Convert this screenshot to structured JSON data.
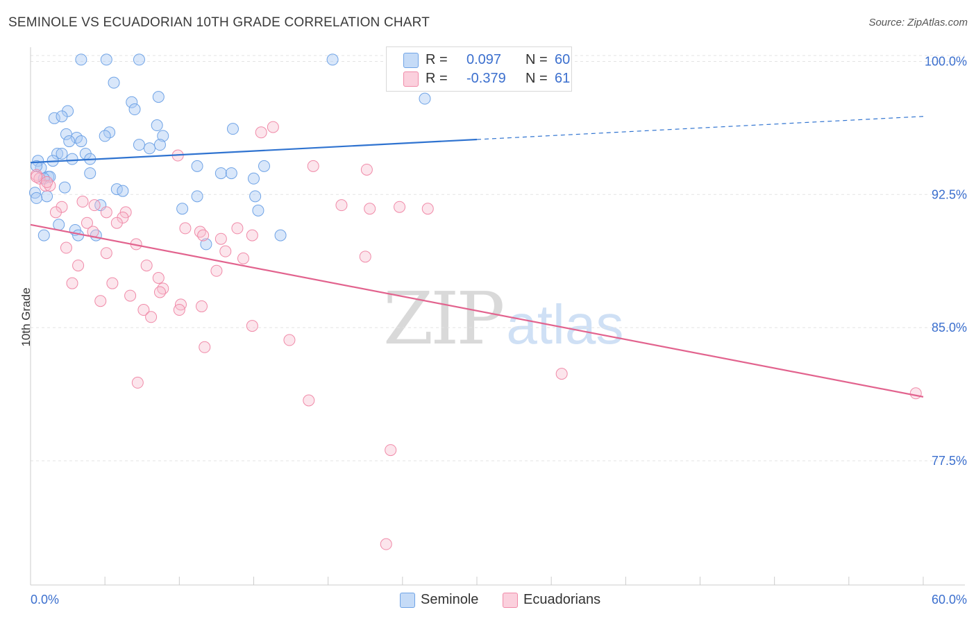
{
  "title": "SEMINOLE VS ECUADORIAN 10TH GRADE CORRELATION CHART",
  "source": "Source: ZipAtlas.com",
  "watermark": {
    "zip": "ZIP",
    "atlas": "atlas"
  },
  "legend_top": [
    {
      "series": "Seminole",
      "r_label": "R =",
      "r_value": "0.097",
      "n_label": "N =",
      "n_value": "60"
    },
    {
      "series": "Ecuadorians",
      "r_label": "R =",
      "r_value": "-0.379",
      "n_label": "N =",
      "n_value": "61"
    }
  ],
  "legend_bottom": [
    "Seminole",
    "Ecuadorians"
  ],
  "chart_data": {
    "type": "scatter",
    "title": "SEMINOLE VS ECUADORIAN 10TH GRADE CORRELATION CHART",
    "xlabel": "",
    "ylabel": "10th Grade",
    "xlim": [
      0,
      60
    ],
    "ylim": [
      70.5,
      100.8
    ],
    "x_tick_labels": [
      "0.0%",
      "60.0%"
    ],
    "y_ticks": [
      77.5,
      85.0,
      92.5,
      100.0
    ],
    "y_tick_labels": [
      "77.5%",
      "85.0%",
      "92.5%",
      "100.0%"
    ],
    "grid": true,
    "legend_position": "top-center",
    "colors": {
      "Seminole": "#6fa3e6",
      "Ecuadorians": "#f08aa8",
      "seminole_line": "#2f73d0",
      "ecuadorian_line": "#e2638e",
      "tick_text": "#3b6fce"
    },
    "series": [
      {
        "name": "Seminole",
        "points": [
          [
            3.4,
            100.1
          ],
          [
            5.1,
            100.1
          ],
          [
            7.3,
            100.1
          ],
          [
            20.3,
            100.1
          ],
          [
            5.6,
            98.8
          ],
          [
            8.6,
            98.0
          ],
          [
            26.5,
            97.9
          ],
          [
            6.8,
            97.7
          ],
          [
            7.0,
            97.3
          ],
          [
            2.5,
            97.2
          ],
          [
            1.6,
            96.8
          ],
          [
            2.1,
            96.9
          ],
          [
            8.5,
            96.4
          ],
          [
            13.6,
            96.2
          ],
          [
            5.3,
            96.0
          ],
          [
            2.4,
            95.9
          ],
          [
            5.0,
            95.8
          ],
          [
            3.1,
            95.7
          ],
          [
            2.6,
            95.5
          ],
          [
            3.4,
            95.5
          ],
          [
            7.3,
            95.3
          ],
          [
            8.9,
            95.8
          ],
          [
            8.7,
            95.3
          ],
          [
            8.0,
            95.1
          ],
          [
            3.7,
            94.8
          ],
          [
            1.8,
            94.8
          ],
          [
            2.1,
            94.8
          ],
          [
            0.5,
            94.4
          ],
          [
            1.5,
            94.4
          ],
          [
            2.8,
            94.5
          ],
          [
            4.0,
            94.5
          ],
          [
            11.2,
            94.1
          ],
          [
            15.7,
            94.1
          ],
          [
            0.7,
            94.0
          ],
          [
            12.8,
            93.7
          ],
          [
            13.5,
            93.7
          ],
          [
            4.0,
            93.7
          ],
          [
            1.2,
            93.5
          ],
          [
            1.3,
            93.5
          ],
          [
            15.0,
            93.4
          ],
          [
            0.9,
            93.4
          ],
          [
            2.3,
            92.9
          ],
          [
            5.8,
            92.8
          ],
          [
            6.2,
            92.7
          ],
          [
            0.3,
            92.6
          ],
          [
            1.1,
            92.4
          ],
          [
            0.4,
            92.3
          ],
          [
            11.2,
            92.4
          ],
          [
            15.1,
            92.4
          ],
          [
            4.7,
            91.9
          ],
          [
            10.2,
            91.7
          ],
          [
            15.3,
            91.6
          ],
          [
            1.9,
            90.8
          ],
          [
            3.0,
            90.5
          ],
          [
            3.2,
            90.2
          ],
          [
            4.4,
            90.2
          ],
          [
            0.9,
            90.2
          ],
          [
            16.8,
            90.2
          ],
          [
            11.8,
            89.7
          ],
          [
            0.4,
            94.1
          ]
        ]
      },
      {
        "name": "Ecuadorians",
        "points": [
          [
            0.4,
            93.6
          ],
          [
            0.6,
            93.4
          ],
          [
            1.0,
            93.0
          ],
          [
            1.3,
            93.0
          ],
          [
            1.1,
            93.2
          ],
          [
            16.3,
            96.3
          ],
          [
            15.5,
            96.0
          ],
          [
            9.9,
            94.7
          ],
          [
            19.0,
            94.1
          ],
          [
            22.6,
            93.9
          ],
          [
            3.5,
            92.1
          ],
          [
            2.1,
            91.8
          ],
          [
            1.7,
            91.5
          ],
          [
            4.3,
            91.9
          ],
          [
            5.1,
            91.5
          ],
          [
            20.9,
            91.9
          ],
          [
            22.8,
            91.7
          ],
          [
            24.8,
            91.8
          ],
          [
            26.7,
            91.7
          ],
          [
            6.4,
            91.5
          ],
          [
            6.2,
            91.2
          ],
          [
            5.8,
            90.9
          ],
          [
            3.8,
            90.9
          ],
          [
            10.4,
            90.6
          ],
          [
            13.9,
            90.6
          ],
          [
            11.4,
            90.4
          ],
          [
            4.2,
            90.4
          ],
          [
            11.6,
            90.2
          ],
          [
            12.8,
            90.0
          ],
          [
            14.9,
            90.2
          ],
          [
            7.1,
            89.7
          ],
          [
            2.4,
            89.5
          ],
          [
            5.1,
            89.2
          ],
          [
            13.1,
            89.3
          ],
          [
            22.5,
            89.0
          ],
          [
            14.3,
            88.9
          ],
          [
            3.2,
            88.5
          ],
          [
            7.8,
            88.5
          ],
          [
            12.5,
            88.2
          ],
          [
            8.6,
            87.8
          ],
          [
            2.8,
            87.5
          ],
          [
            5.5,
            87.5
          ],
          [
            8.9,
            87.2
          ],
          [
            8.7,
            87.0
          ],
          [
            6.7,
            86.8
          ],
          [
            4.7,
            86.5
          ],
          [
            10.1,
            86.3
          ],
          [
            11.5,
            86.2
          ],
          [
            7.6,
            86.0
          ],
          [
            10.0,
            86.0
          ],
          [
            8.1,
            85.6
          ],
          [
            14.9,
            85.1
          ],
          [
            17.4,
            84.3
          ],
          [
            11.7,
            83.9
          ],
          [
            35.7,
            82.4
          ],
          [
            7.2,
            81.9
          ],
          [
            18.7,
            80.9
          ],
          [
            59.5,
            81.3
          ],
          [
            24.2,
            78.1
          ],
          [
            23.9,
            72.8
          ],
          [
            0.4,
            93.5
          ]
        ]
      }
    ],
    "trend_lines": [
      {
        "series": "Seminole",
        "solid": {
          "x": [
            0,
            30
          ],
          "y": [
            94.3,
            95.6
          ]
        },
        "dashed": {
          "x": [
            30,
            60
          ],
          "y": [
            95.6,
            96.9
          ]
        }
      },
      {
        "series": "Ecuadorians",
        "solid": {
          "x": [
            0,
            60
          ],
          "y": [
            90.8,
            81.1
          ]
        }
      }
    ]
  }
}
